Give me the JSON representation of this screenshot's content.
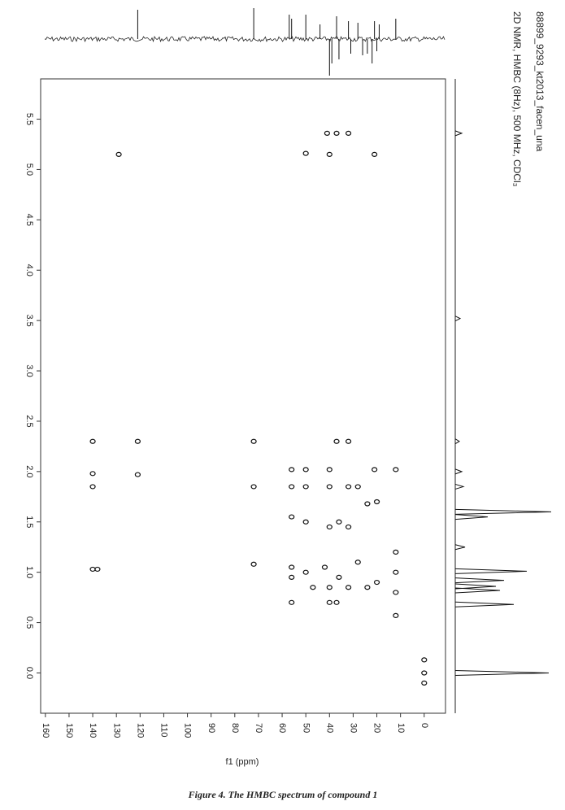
{
  "header": {
    "sample": "88899_9293_kt2013_facen_una",
    "experiment": "2D NMR, HMBC (8Hz), 500 MHz, CDCl₃"
  },
  "axes": {
    "xlabel": "f1 (ppm)",
    "xlim": [
      162,
      -9
    ],
    "xticks": [
      160,
      150,
      140,
      130,
      120,
      110,
      100,
      90,
      80,
      70,
      60,
      50,
      40,
      30,
      20,
      10,
      0
    ],
    "ylim": [
      -0.4,
      5.9
    ],
    "yticks": [
      {
        "value": 0,
        "label": "0.0"
      },
      0.5,
      {
        "value": 1,
        "label": "1.0"
      },
      1.5,
      {
        "value": 2,
        "label": "2.0"
      },
      2.5,
      {
        "value": 3,
        "label": "3.0"
      },
      3.5,
      {
        "value": 4,
        "label": "4.0"
      },
      4.5,
      {
        "value": 5,
        "label": "5.0"
      },
      5.5
    ]
  },
  "peaks": [
    {
      "f1": 41,
      "h": 5.36
    },
    {
      "f1": 37,
      "h": 5.36
    },
    {
      "f1": 32,
      "h": 5.36
    },
    {
      "f1": 129,
      "h": 5.15
    },
    {
      "f1": 50,
      "h": 5.16
    },
    {
      "f1": 40,
      "h": 5.15
    },
    {
      "f1": 21,
      "h": 5.15
    },
    {
      "f1": 140,
      "h": 2.3
    },
    {
      "f1": 121,
      "h": 2.3
    },
    {
      "f1": 72,
      "h": 2.3
    },
    {
      "f1": 37,
      "h": 2.3
    },
    {
      "f1": 32,
      "h": 2.3
    },
    {
      "f1": 140,
      "h": 1.85
    },
    {
      "f1": 72,
      "h": 1.85
    },
    {
      "f1": 121,
      "h": 1.97
    },
    {
      "f1": 140,
      "h": 1.98
    },
    {
      "f1": 56,
      "h": 2.02
    },
    {
      "f1": 50,
      "h": 2.02
    },
    {
      "f1": 40,
      "h": 2.02
    },
    {
      "f1": 21,
      "h": 2.02
    },
    {
      "f1": 12,
      "h": 2.02
    },
    {
      "f1": 56,
      "h": 1.85
    },
    {
      "f1": 50,
      "h": 1.85
    },
    {
      "f1": 40,
      "h": 1.85
    },
    {
      "f1": 32,
      "h": 1.85
    },
    {
      "f1": 28,
      "h": 1.85
    },
    {
      "f1": 56,
      "h": 1.55
    },
    {
      "f1": 50,
      "h": 1.5
    },
    {
      "f1": 40,
      "h": 1.45
    },
    {
      "f1": 36,
      "h": 1.5
    },
    {
      "f1": 32,
      "h": 1.45
    },
    {
      "f1": 20,
      "h": 1.7
    },
    {
      "f1": 24,
      "h": 1.68
    },
    {
      "f1": 140,
      "h": 1.03
    },
    {
      "f1": 138,
      "h": 1.03
    },
    {
      "f1": 72,
      "h": 1.08
    },
    {
      "f1": 56,
      "h": 1.05
    },
    {
      "f1": 56,
      "h": 0.95
    },
    {
      "f1": 50,
      "h": 1.0
    },
    {
      "f1": 47,
      "h": 0.85
    },
    {
      "f1": 42,
      "h": 1.05
    },
    {
      "f1": 40,
      "h": 0.85
    },
    {
      "f1": 36,
      "h": 0.95
    },
    {
      "f1": 32,
      "h": 0.85
    },
    {
      "f1": 28,
      "h": 1.1
    },
    {
      "f1": 24,
      "h": 0.85
    },
    {
      "f1": 20,
      "h": 0.9
    },
    {
      "f1": 12,
      "h": 1.2
    },
    {
      "f1": 12,
      "h": 1.0
    },
    {
      "f1": 12,
      "h": 0.8
    },
    {
      "f1": 56,
      "h": 0.7
    },
    {
      "f1": 40,
      "h": 0.7
    },
    {
      "f1": 37,
      "h": 0.7
    },
    {
      "f1": 12,
      "h": 0.57
    },
    {
      "f1": 0,
      "h": 0.13
    },
    {
      "f1": 0,
      "h": 0
    },
    {
      "f1": 0,
      "h": -0.1
    }
  ],
  "top_trace": [
    {
      "ppm": 121,
      "intensity": 36
    },
    {
      "ppm": 72,
      "intensity": 38
    },
    {
      "ppm": 57,
      "intensity": 30
    },
    {
      "ppm": 56,
      "intensity": 25
    },
    {
      "ppm": 50,
      "intensity": 30
    },
    {
      "ppm": 44,
      "intensity": 18
    },
    {
      "ppm": 37,
      "intensity": 28
    },
    {
      "ppm": 32,
      "intensity": 22
    },
    {
      "ppm": 28,
      "intensity": 20
    },
    {
      "ppm": 21,
      "intensity": 22
    },
    {
      "ppm": 19,
      "intensity": 18
    },
    {
      "ppm": 12,
      "intensity": 25
    },
    {
      "ppm": 40,
      "intensity": -45
    },
    {
      "ppm": 39,
      "intensity": -30
    },
    {
      "ppm": 36,
      "intensity": -25
    },
    {
      "ppm": 31,
      "intensity": -18
    },
    {
      "ppm": 26,
      "intensity": -20
    },
    {
      "ppm": 24,
      "intensity": -18
    },
    {
      "ppm": 22,
      "intensity": -30
    },
    {
      "ppm": 20,
      "intensity": -15
    }
  ],
  "side_trace": [
    {
      "ppm": 5.36,
      "intensity": 8
    },
    {
      "ppm": 3.52,
      "intensity": 6
    },
    {
      "ppm": 2.3,
      "intensity": 5
    },
    {
      "ppm": 2.0,
      "intensity": 8
    },
    {
      "ppm": 1.85,
      "intensity": 10
    },
    {
      "ppm": 1.6,
      "intensity": 118
    },
    {
      "ppm": 1.55,
      "intensity": 40
    },
    {
      "ppm": 1.25,
      "intensity": 12
    },
    {
      "ppm": 1.01,
      "intensity": 88
    },
    {
      "ppm": 0.92,
      "intensity": 60
    },
    {
      "ppm": 0.86,
      "intensity": 50
    },
    {
      "ppm": 0.82,
      "intensity": 55
    },
    {
      "ppm": 0.68,
      "intensity": 72
    },
    {
      "ppm": 0,
      "intensity": 115
    }
  ],
  "caption": "Figure 4. The HMBC spectrum of compound 1"
}
